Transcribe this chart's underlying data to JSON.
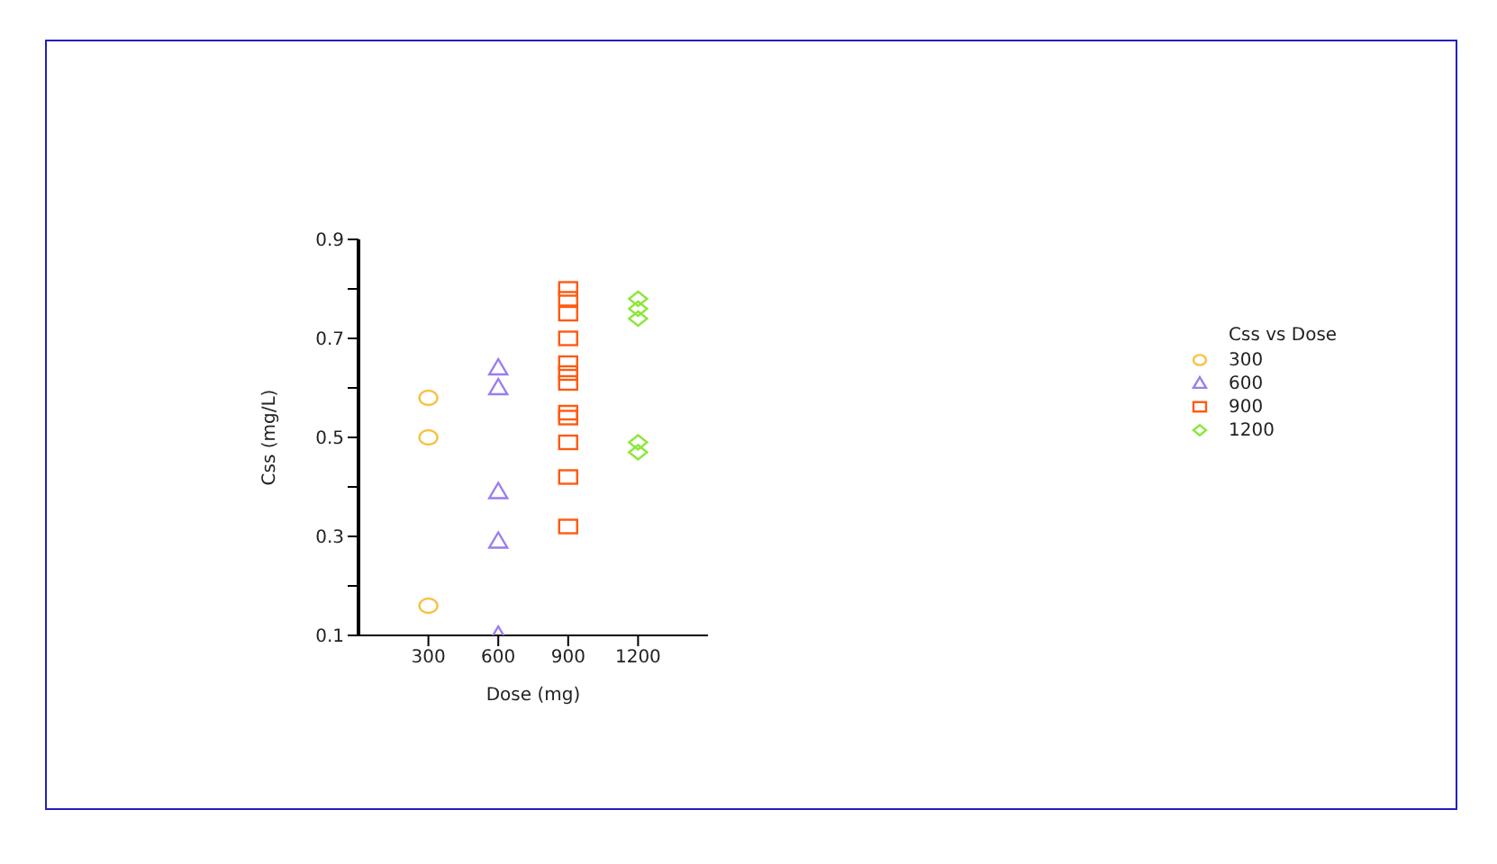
{
  "chart_data": {
    "type": "scatter",
    "xlabel": "Dose (mg)",
    "ylabel": "Css (mg/L)",
    "legend_title": "Css vs Dose",
    "legend": "right",
    "grid": false,
    "xlim": [
      0,
      1500
    ],
    "xticks": [
      300,
      600,
      900,
      1200
    ],
    "ylim": [
      0.1,
      0.9
    ],
    "yticks": [
      0.1,
      {
        "value": 0.2,
        "label": null
      },
      0.3,
      {
        "value": 0.4,
        "label": null
      },
      0.5,
      {
        "value": 0.6,
        "label": null
      },
      0.7,
      {
        "value": 0.8,
        "label": null
      },
      0.9
    ],
    "series": [
      {
        "name": "300",
        "color": "#f5c242",
        "marker": "circle",
        "x": [
          300,
          300,
          300
        ],
        "values": [
          0.58,
          0.5,
          0.16
        ]
      },
      {
        "name": "600",
        "color": "#9a7cf0",
        "marker": "triangle",
        "x": [
          600,
          600,
          600,
          600,
          600
        ],
        "values": [
          0.64,
          0.6,
          0.39,
          0.29,
          0.1
        ]
      },
      {
        "name": "900",
        "color": "#ff5a10",
        "marker": "square",
        "x": [
          900,
          900,
          900,
          900,
          900,
          900,
          900,
          900,
          900,
          900,
          900,
          900
        ],
        "values": [
          0.8,
          0.78,
          0.75,
          0.7,
          0.65,
          0.63,
          0.61,
          0.55,
          0.54,
          0.49,
          0.42,
          0.32
        ]
      },
      {
        "name": "1200",
        "color": "#8ce63a",
        "marker": "diamond",
        "x": [
          1200,
          1200,
          1200,
          1200,
          1200
        ],
        "values": [
          0.78,
          0.76,
          0.74,
          0.49,
          0.47
        ]
      }
    ]
  }
}
